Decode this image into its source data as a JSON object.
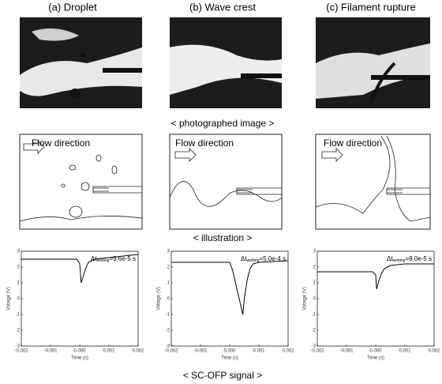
{
  "panels": [
    "(a) Droplet",
    "(b) Wave crest",
    "(c) Filament rupture"
  ],
  "captions": [
    "< photographed image >",
    "< illustration >",
    "< SC-OFP signal >"
  ],
  "flow_labels": [
    "Flow direction",
    "Flow direction",
    "Flow direction"
  ],
  "chart_data": [
    {
      "type": "line",
      "annotation": [
        "Δt",
        "wetting",
        "=9.6e-5 s"
      ],
      "xlabel": "Time (s)",
      "ylabel": "Voltage (V)",
      "xlim": [
        -0.002,
        0.002
      ],
      "ylim": [
        -3,
        3
      ],
      "xticks": [
        {
          "value": -0.002,
          "label": "-0.002"
        },
        -0.001,
        {
          "value": 0,
          "label": "0.000"
        },
        0.001,
        0.002
      ],
      "yticks": [
        3,
        2,
        1,
        0,
        -1,
        -2,
        -3
      ],
      "series": [
        {
          "color": "#000000",
          "x": [
            -0.002,
            -0.0015,
            -0.001,
            -0.0005,
            -0.0001,
            0,
            5e-05,
            0.0001,
            0.0002,
            0.0003,
            0.0005,
            0.001,
            0.0015,
            0.002
          ],
          "values": [
            2.5,
            2.5,
            2.5,
            2.5,
            2.5,
            2.2,
            1.0,
            1.3,
            1.9,
            2.3,
            2.5,
            2.6,
            2.7,
            2.8
          ]
        }
      ]
    },
    {
      "type": "line",
      "annotation": [
        "Δt",
        "wetting",
        "=5.0e-4 s"
      ],
      "xlabel": "Time (s)",
      "ylabel": "Voltage (V)",
      "xlim": [
        -0.002,
        0.002
      ],
      "ylim": [
        -3,
        3
      ],
      "xticks": [
        {
          "value": -0.002,
          "label": "-0.002"
        },
        -0.001,
        {
          "value": 0,
          "label": "0.000"
        },
        0.001,
        0.002
      ],
      "yticks": [
        3,
        2,
        1,
        0,
        -1,
        -2,
        -3
      ],
      "series": [
        {
          "color": "#000000",
          "x": [
            -0.002,
            -0.001,
            -0.0005,
            0,
            0.0001,
            0.0002,
            0.0003,
            0.0004,
            0.00045,
            0.0005,
            0.0006,
            0.0007,
            0.0008,
            0.001,
            0.002
          ],
          "values": [
            2.3,
            2.3,
            2.3,
            2.3,
            1.8,
            1.0,
            0.2,
            -0.6,
            -1.0,
            0.0,
            1.2,
            1.9,
            2.2,
            2.3,
            2.4
          ]
        }
      ]
    },
    {
      "type": "line",
      "annotation": [
        "Δt",
        "wetting",
        "=8.0e-5 s"
      ],
      "xlabel": "Time (s)",
      "ylabel": "Voltage (V)",
      "xlim": [
        -0.002,
        0.002
      ],
      "ylim": [
        -3,
        3
      ],
      "xticks": [
        {
          "value": -0.002,
          "label": "-0.002"
        },
        -0.001,
        {
          "value": 0,
          "label": "0.000"
        },
        0.001,
        0.002
      ],
      "yticks": [
        3,
        2,
        1,
        0,
        -1,
        -2,
        -3
      ],
      "series": [
        {
          "color": "#000000",
          "x": [
            -0.002,
            -0.001,
            -0.0005,
            -0.0001,
            0,
            3e-05,
            0.0001,
            0.0002,
            0.0003,
            0.0005,
            0.001,
            0.002
          ],
          "values": [
            1.7,
            1.7,
            1.7,
            1.7,
            1.5,
            0.6,
            1.1,
            1.6,
            1.9,
            2.1,
            2.2,
            2.2
          ]
        }
      ]
    }
  ]
}
